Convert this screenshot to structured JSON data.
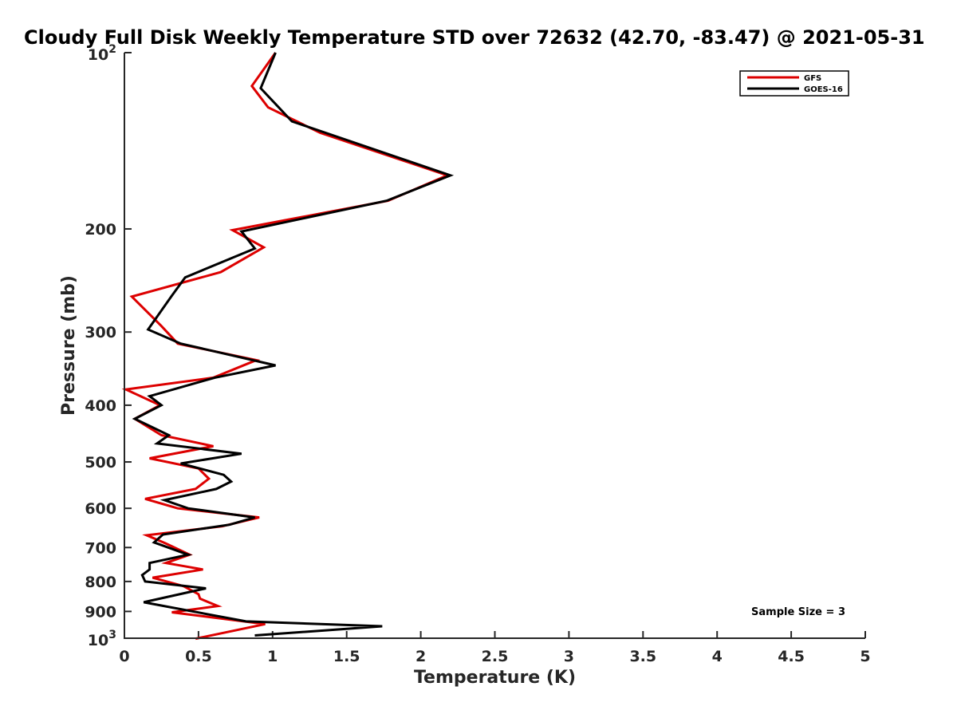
{
  "chart_data": {
    "type": "line",
    "title": "Cloudy Full Disk Weekly Temperature STD over 72632 (42.70, -83.47) @ 2021-05-31",
    "xlabel": "Temperature (K)",
    "ylabel": "Pressure (mb)",
    "xlim": [
      0,
      5
    ],
    "ylim": [
      100,
      1000
    ],
    "y_scale": "log",
    "y_reversed": true,
    "grid": false,
    "legend_position": "top-right",
    "x_ticks": [
      "0",
      "0.5",
      "1",
      "1.5",
      "2",
      "2.5",
      "3",
      "3.5",
      "4",
      "4.5",
      "5"
    ],
    "y_ticks": [
      {
        "value": 100,
        "base": "10",
        "exp": "2"
      },
      {
        "value": 200,
        "label": "200"
      },
      {
        "value": 300,
        "label": "300"
      },
      {
        "value": 400,
        "label": "400"
      },
      {
        "value": 500,
        "label": "500"
      },
      {
        "value": 600,
        "label": "600"
      },
      {
        "value": 700,
        "label": "700"
      },
      {
        "value": 800,
        "label": "800"
      },
      {
        "value": 900,
        "label": "900"
      },
      {
        "value": 1000,
        "base": "10",
        "exp": "3"
      }
    ],
    "series": [
      {
        "name": "GFS",
        "color": "#dd0000",
        "points": [
          [
            1.02,
            100
          ],
          [
            0.86,
            114
          ],
          [
            0.97,
            124
          ],
          [
            1.32,
            137
          ],
          [
            2.18,
            162
          ],
          [
            1.78,
            179
          ],
          [
            0.73,
            201
          ],
          [
            0.94,
            215
          ],
          [
            0.65,
            237
          ],
          [
            0.05,
            261
          ],
          [
            0.25,
            293
          ],
          [
            0.36,
            314
          ],
          [
            0.89,
            335
          ],
          [
            0.6,
            359
          ],
          [
            0.01,
            376
          ],
          [
            0.24,
            400
          ],
          [
            0.07,
            422
          ],
          [
            0.25,
            450
          ],
          [
            0.6,
            470
          ],
          [
            0.17,
            493
          ],
          [
            0.5,
            513
          ],
          [
            0.57,
            534
          ],
          [
            0.48,
            556
          ],
          [
            0.14,
            578
          ],
          [
            0.36,
            600
          ],
          [
            0.91,
            622
          ],
          [
            0.66,
            644
          ],
          [
            0.15,
            667
          ],
          [
            0.28,
            689
          ],
          [
            0.44,
            720
          ],
          [
            0.28,
            744
          ],
          [
            0.53,
            763
          ],
          [
            0.19,
            788
          ],
          [
            0.4,
            815
          ],
          [
            0.5,
            841
          ],
          [
            0.51,
            856
          ],
          [
            0.63,
            881
          ],
          [
            0.32,
            903
          ],
          [
            0.95,
            946
          ],
          [
            0.48,
            1002
          ]
        ]
      },
      {
        "name": "GOES-16",
        "color": "#000000",
        "points": [
          [
            1.02,
            100
          ],
          [
            0.92,
            115
          ],
          [
            1.13,
            131
          ],
          [
            2.2,
            162
          ],
          [
            1.77,
            179
          ],
          [
            0.79,
            202
          ],
          [
            0.88,
            216
          ],
          [
            0.41,
            242
          ],
          [
            0.32,
            260
          ],
          [
            0.16,
            297
          ],
          [
            0.38,
            314
          ],
          [
            1.02,
            342
          ],
          [
            0.61,
            359
          ],
          [
            0.17,
            386
          ],
          [
            0.25,
            400
          ],
          [
            0.07,
            422
          ],
          [
            0.3,
            450
          ],
          [
            0.22,
            465
          ],
          [
            0.79,
            484
          ],
          [
            0.38,
            503
          ],
          [
            0.67,
            526
          ],
          [
            0.72,
            540
          ],
          [
            0.62,
            556
          ],
          [
            0.27,
            581
          ],
          [
            0.43,
            600
          ],
          [
            0.88,
            622
          ],
          [
            0.71,
            640
          ],
          [
            0.26,
            665
          ],
          [
            0.2,
            686
          ],
          [
            0.43,
            720
          ],
          [
            0.17,
            744
          ],
          [
            0.17,
            763
          ],
          [
            0.12,
            780
          ],
          [
            0.14,
            800
          ],
          [
            0.55,
            822
          ],
          [
            0.13,
            868
          ],
          [
            0.82,
            936
          ],
          [
            1.74,
            954
          ],
          [
            0.88,
            989
          ]
        ]
      }
    ],
    "annotation": "Sample Size = 3"
  }
}
